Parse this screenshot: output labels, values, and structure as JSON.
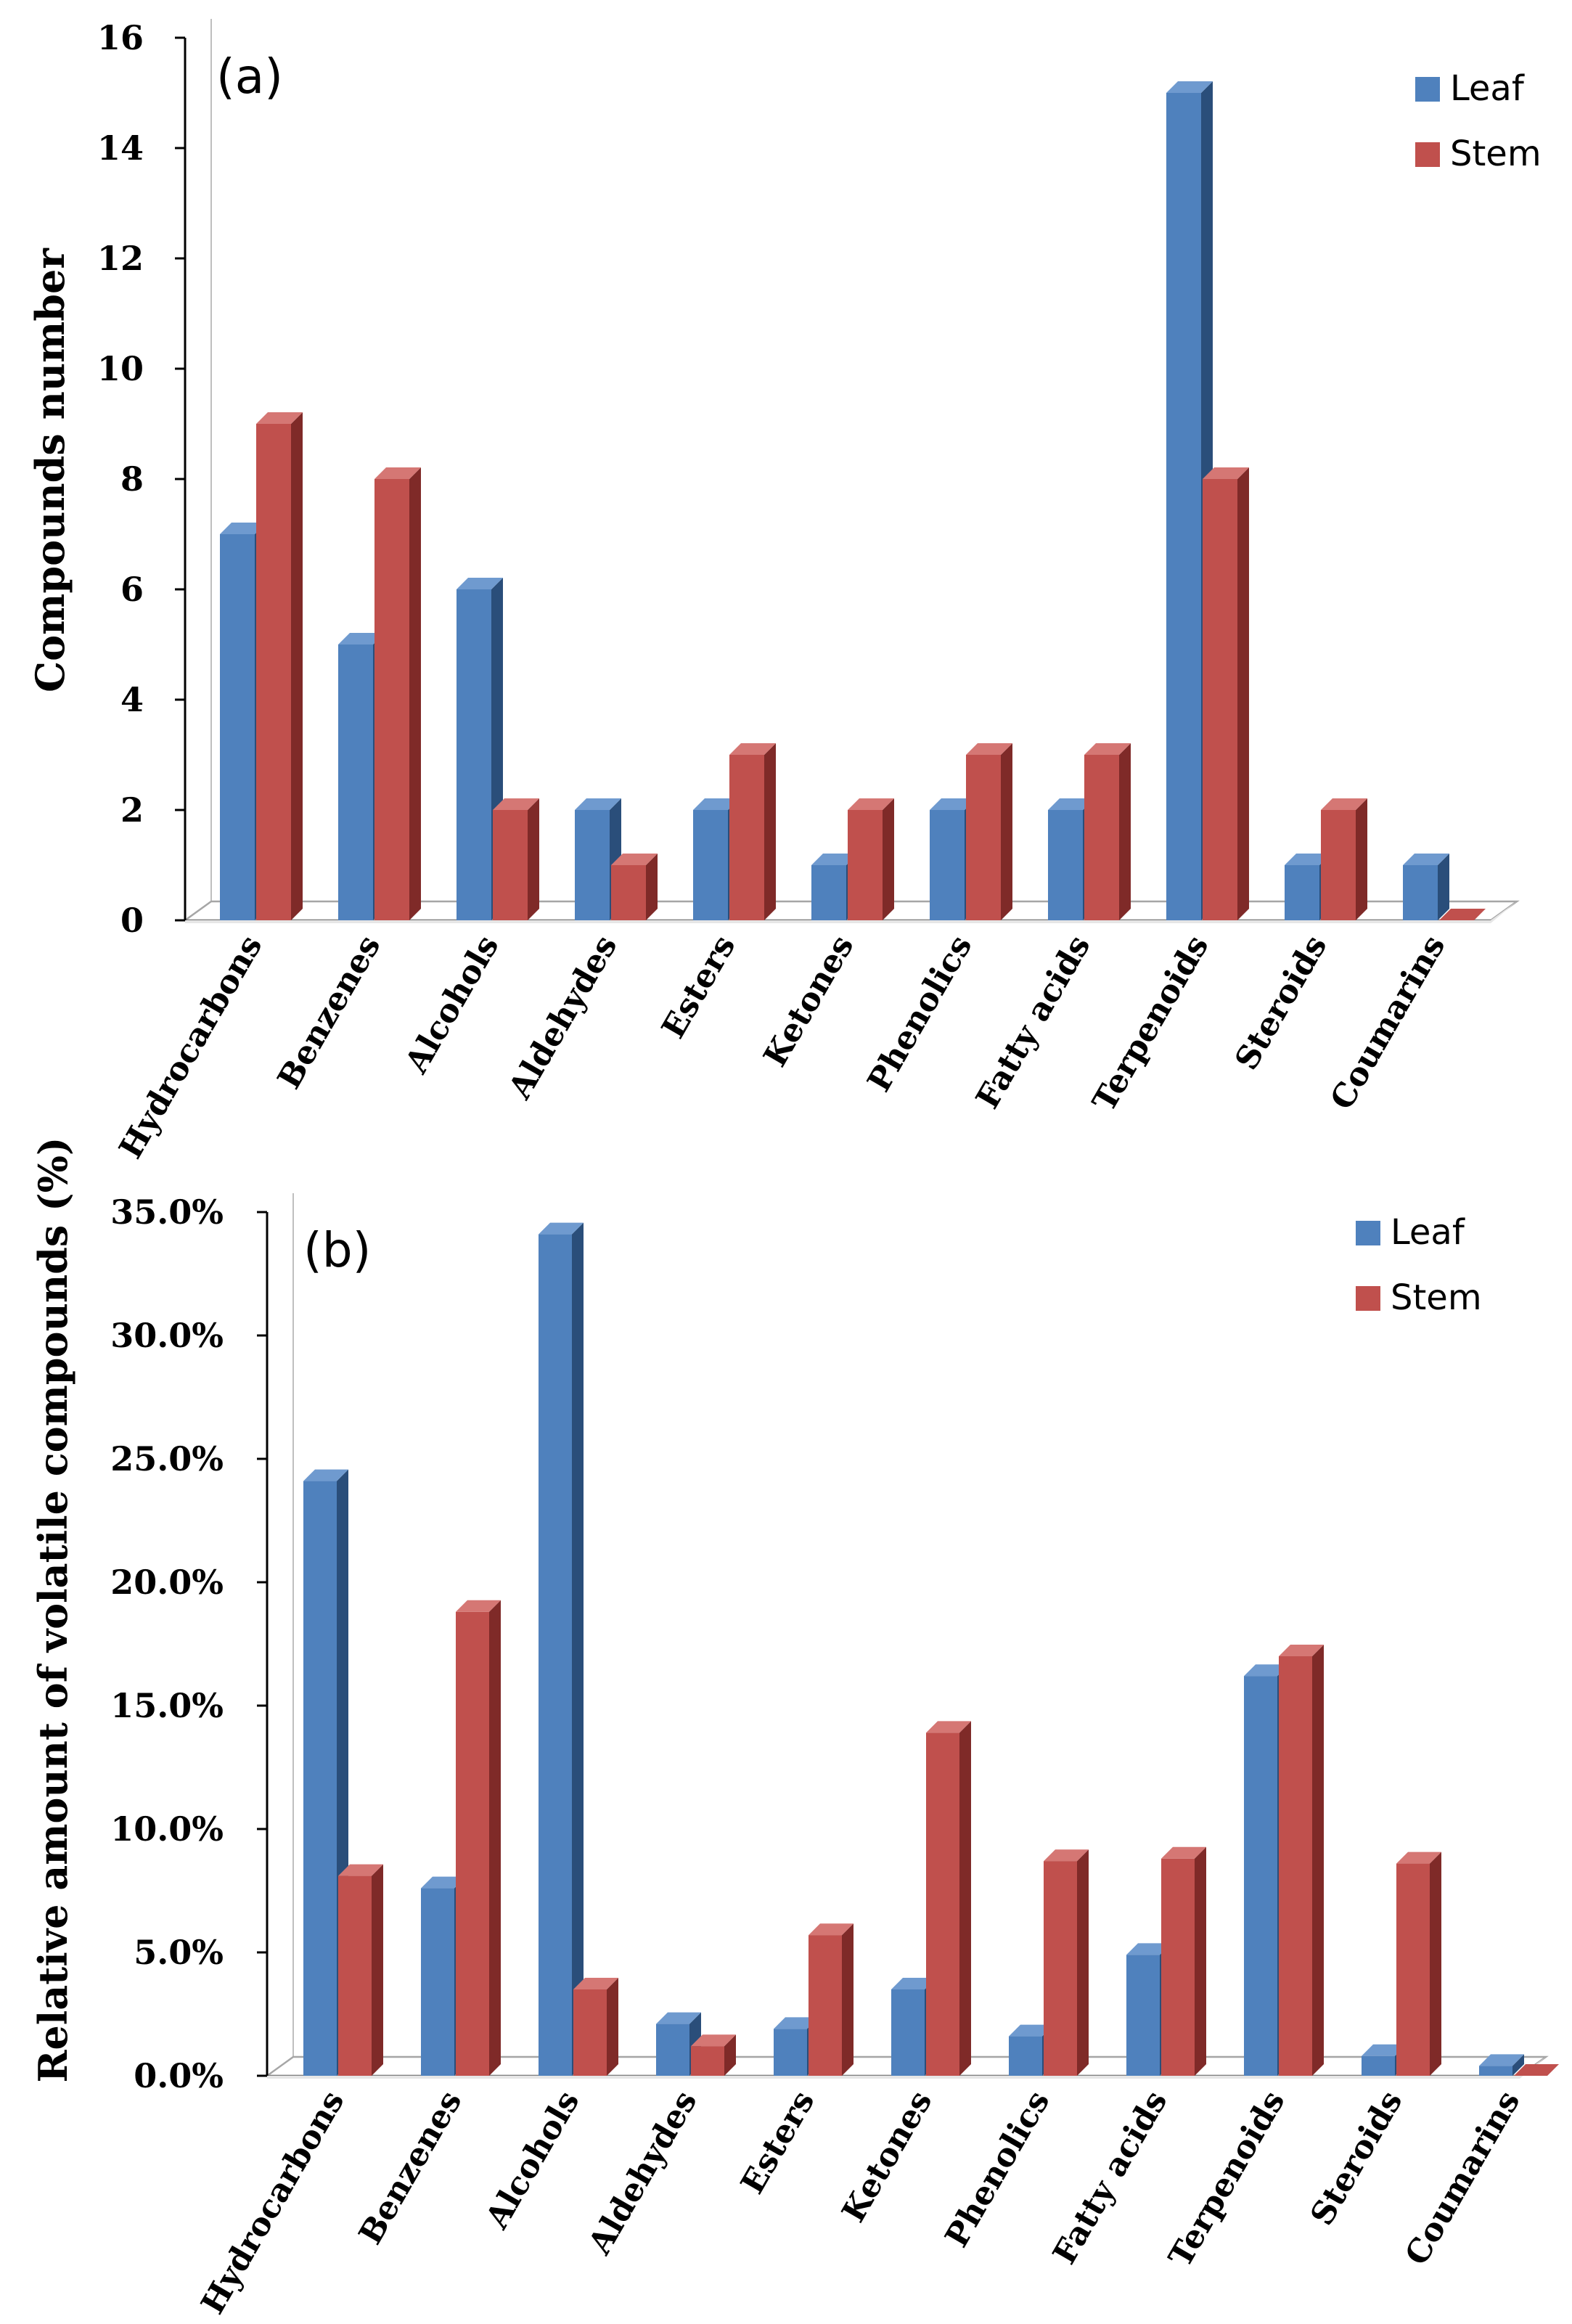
{
  "colors": {
    "leaf_front": "#4F81BD",
    "leaf_side": "#2A4E7A",
    "leaf_top": "#6F9ACF",
    "stem_front": "#C0504D",
    "stem_side": "#7F2A28",
    "stem_top": "#D57774"
  },
  "chart_data": [
    {
      "type": "bar",
      "panel_label": "(a)",
      "title": "",
      "xlabel": "",
      "ylabel": "Compounds  number",
      "categories": [
        "Hydrocarbons",
        "Benzenes",
        "Alcohols",
        "Aldehydes",
        "Esters",
        "Ketones",
        "Phenolics",
        "Fatty acids",
        "Terpenoids",
        "Steroids",
        "Coumarins"
      ],
      "series": [
        {
          "name": "Leaf",
          "values": [
            7,
            5,
            6,
            2,
            2,
            1,
            2,
            2,
            15,
            1,
            1
          ]
        },
        {
          "name": "Stem",
          "values": [
            9,
            8,
            2,
            1,
            3,
            2,
            3,
            3,
            8,
            2,
            0
          ]
        }
      ],
      "ylim": [
        0,
        16
      ],
      "yticks": [
        "0",
        "2",
        "4",
        "6",
        "8",
        "10",
        "12",
        "14",
        "16"
      ],
      "legend": [
        "Leaf",
        "Stem"
      ],
      "legend_position": "top-right",
      "grid": false
    },
    {
      "type": "bar",
      "panel_label": "(b)",
      "title": "",
      "xlabel": "",
      "ylabel": "Relative amount of volatile compounds (%)",
      "categories": [
        "Hydrocarbons",
        "Benzenes",
        "Alcohols",
        "Aldehydes",
        "Esters",
        "Ketones",
        "Phenolics",
        "Fatty acids",
        "Terpenoids",
        "Steroids",
        "Coumarins"
      ],
      "series": [
        {
          "name": "Leaf",
          "values": [
            24.1,
            7.6,
            34.1,
            2.1,
            1.9,
            3.5,
            1.6,
            4.9,
            16.2,
            0.8,
            0.4
          ]
        },
        {
          "name": "Stem",
          "values": [
            8.1,
            18.8,
            3.5,
            1.2,
            5.7,
            13.9,
            8.7,
            8.8,
            17.0,
            8.6,
            0
          ]
        }
      ],
      "ylim": [
        0,
        35
      ],
      "yticks": [
        "0.0%",
        "5.0%",
        "10.0%",
        "15.0%",
        "20.0%",
        "25.0%",
        "30.0%",
        "35.0%"
      ],
      "legend": [
        "Leaf",
        "Stem"
      ],
      "legend_position": "top-right",
      "grid": false
    }
  ]
}
